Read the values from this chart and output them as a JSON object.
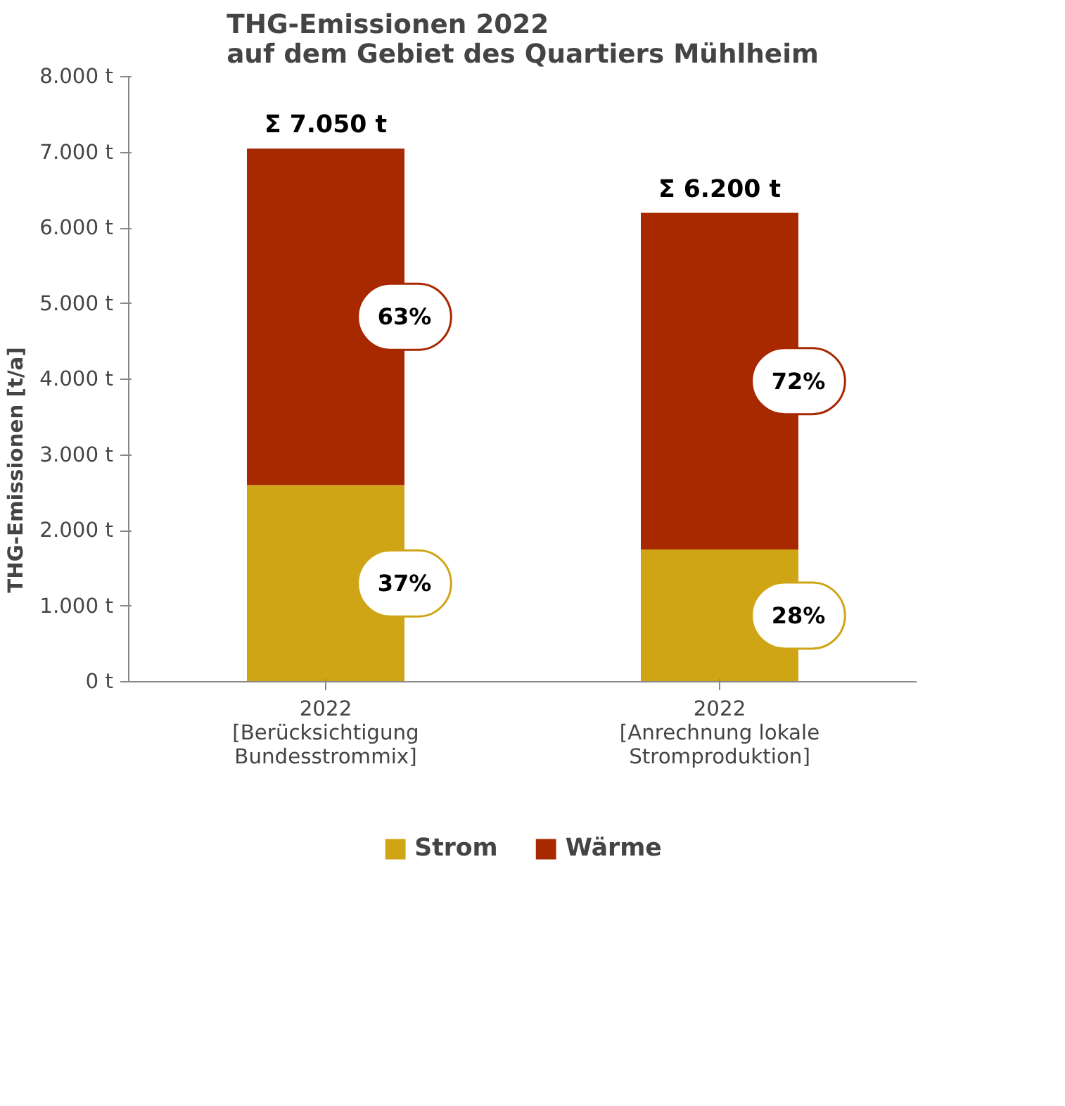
{
  "chart_data": {
    "type": "bar",
    "title": "THG-Emissionen 2022\nauf dem Gebiet des Quartiers Mühlheim",
    "ylabel": "THG-Emissionen [t/a]",
    "categories": [
      "2022\n[Berücksichtigung\nBundesstrommix]",
      "2022\n[Anrechnung lokale\nStromproduktion]"
    ],
    "stacked": true,
    "series": [
      {
        "name": "Strom",
        "color": "#cfa515",
        "values": [
          2600,
          1750
        ]
      },
      {
        "name": "Wärme",
        "color": "#a82800",
        "values": [
          4450,
          4450
        ]
      }
    ],
    "annotations": [
      "37%",
      "28%",
      "63%",
      "72%"
    ],
    "totals": [
      "Σ 7.050 t",
      "Σ 6.200 t"
    ],
    "ylim": [
      0,
      8000
    ],
    "yticks": [
      {
        "value": 0,
        "label": "0 t"
      },
      {
        "value": 1000,
        "label": "1.000 t"
      },
      {
        "value": 2000,
        "label": "2.000 t"
      },
      {
        "value": 3000,
        "label": "3.000 t"
      },
      {
        "value": 4000,
        "label": "4.000 t"
      },
      {
        "value": 5000,
        "label": "5.000 t"
      },
      {
        "value": 6000,
        "label": "6.000 t"
      },
      {
        "value": 7000,
        "label": "7.000 t"
      },
      {
        "value": 8000,
        "label": "8.000 t"
      }
    ],
    "grid": false,
    "legend": "bottom"
  }
}
